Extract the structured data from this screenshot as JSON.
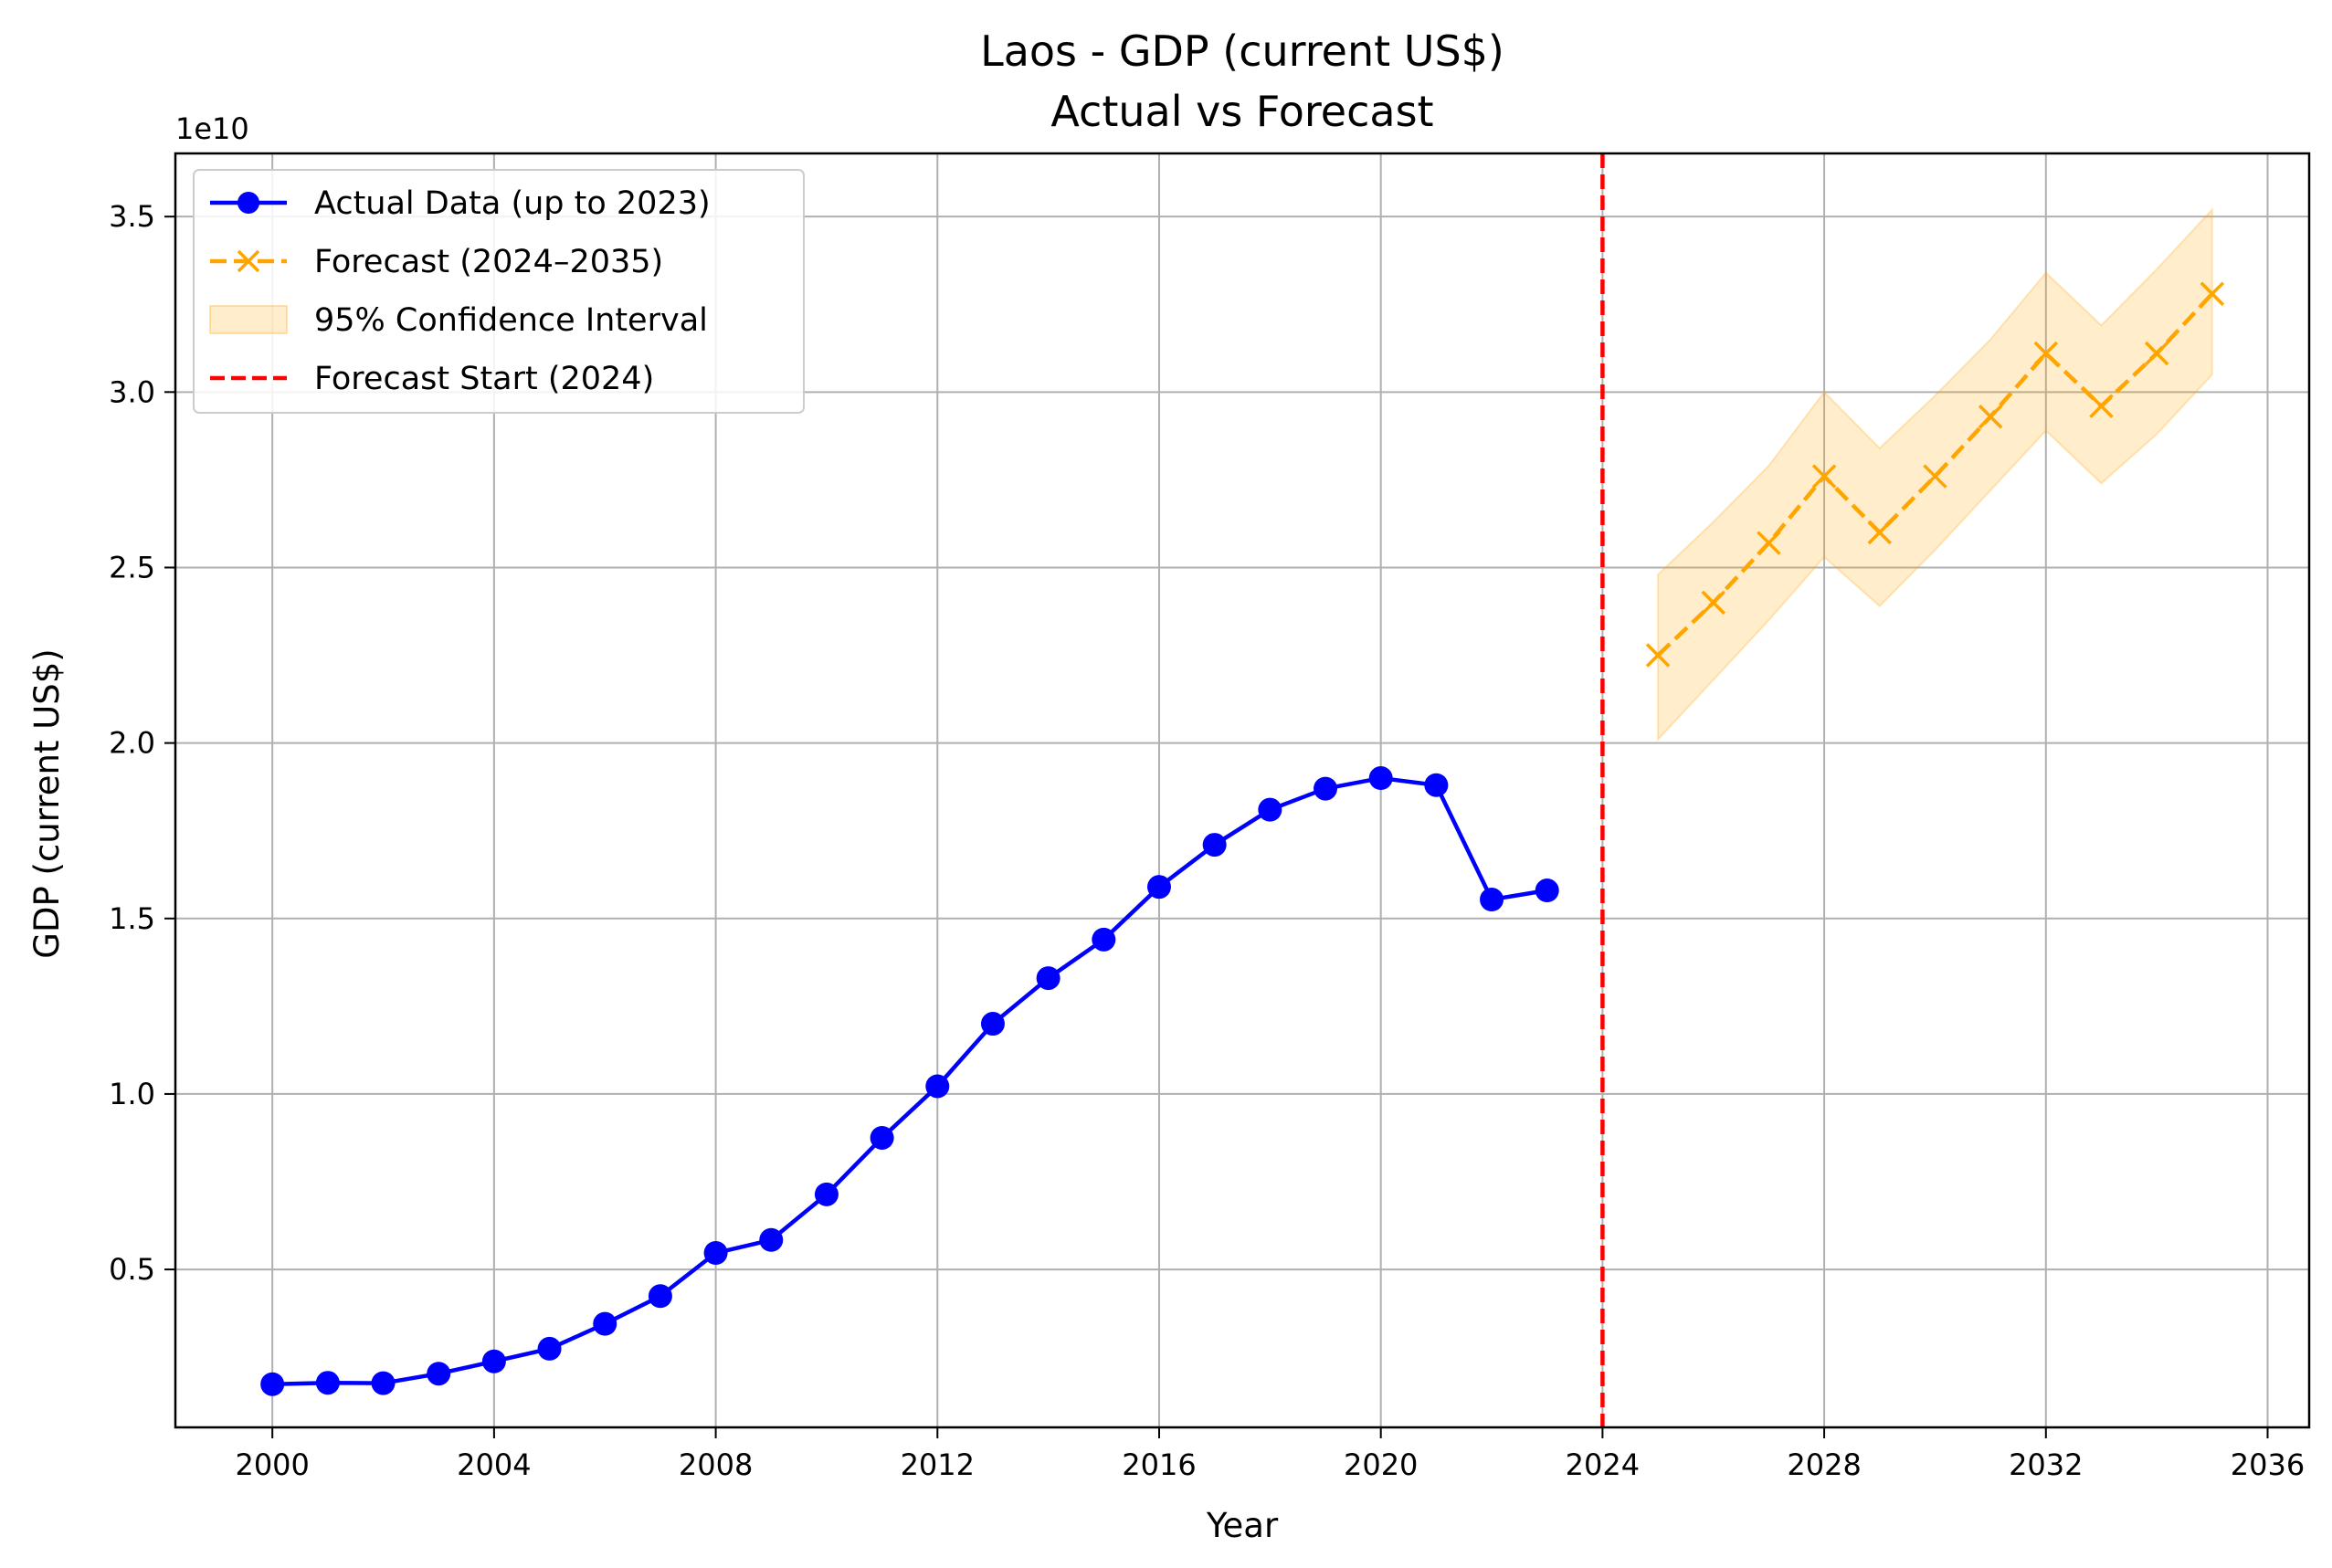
{
  "chart_data": {
    "type": "line",
    "title": "Laos - GDP (current US$)",
    "subtitle": "Actual vs Forecast",
    "xlabel": "Year",
    "ylabel": "GDP (current US$)",
    "y_offset_label": "1e10",
    "xlim": [
      1998.25,
      2036.75
    ],
    "ylim": [
      0.05,
      3.68
    ],
    "x_ticks": [
      2000,
      2004,
      2008,
      2012,
      2016,
      2020,
      2024,
      2028,
      2032,
      2036
    ],
    "y_ticks": [
      0.5,
      1.0,
      1.5,
      2.0,
      2.5,
      3.0,
      3.5
    ],
    "y_tick_labels": [
      "0.5",
      "1.0",
      "1.5",
      "2.0",
      "2.5",
      "3.0",
      "3.5"
    ],
    "grid": true,
    "legend_position": "top-left",
    "legend": [
      {
        "label": "Actual Data (up to 2023)",
        "kind": "line-marker",
        "color": "#0000ff"
      },
      {
        "label": "Forecast (2024–2035)",
        "kind": "dashed-cross",
        "color": "#ffa500"
      },
      {
        "label": "95% Confidence Interval",
        "kind": "band",
        "color": "#ffa500"
      },
      {
        "label": "Forecast Start (2024)",
        "kind": "dashed",
        "color": "#ff0000"
      }
    ],
    "series": [
      {
        "name": "Actual Data (up to 2023)",
        "color": "#0000ff",
        "x": [
          2000,
          2001,
          2002,
          2003,
          2004,
          2005,
          2006,
          2007,
          2008,
          2009,
          2010,
          2011,
          2012,
          2013,
          2014,
          2015,
          2016,
          2017,
          2018,
          2019,
          2020,
          2021,
          2022,
          2023
        ],
        "values": [
          0.173,
          0.177,
          0.176,
          0.203,
          0.238,
          0.274,
          0.345,
          0.424,
          0.547,
          0.584,
          0.714,
          0.875,
          1.022,
          1.2,
          1.33,
          1.44,
          1.59,
          1.71,
          1.81,
          1.87,
          1.9,
          1.88,
          1.554,
          1.58
        ]
      },
      {
        "name": "Forecast (2024–2035)",
        "color": "#ffa500",
        "x": [
          2025,
          2026,
          2027,
          2028,
          2029,
          2030,
          2031,
          2032,
          2033,
          2034,
          2035
        ],
        "values": [
          2.25,
          2.4,
          2.57,
          2.76,
          2.6,
          2.76,
          2.93,
          3.11,
          2.96,
          3.11,
          3.28
        ]
      }
    ],
    "confidence_interval": {
      "name": "95% Confidence Interval",
      "color": "#ffa500",
      "x": [
        2025,
        2026,
        2027,
        2028,
        2029,
        2030,
        2031,
        2032,
        2033,
        2034,
        2035
      ],
      "lower": [
        2.01,
        2.18,
        2.35,
        2.53,
        2.39,
        2.55,
        2.72,
        2.89,
        2.74,
        2.88,
        3.05
      ],
      "upper": [
        2.48,
        2.63,
        2.79,
        3.0,
        2.84,
        2.99,
        3.15,
        3.34,
        3.19,
        3.35,
        3.52
      ]
    },
    "vertical_line": {
      "name": "Forecast Start (2024)",
      "x": 2024,
      "color": "#ff0000"
    }
  }
}
